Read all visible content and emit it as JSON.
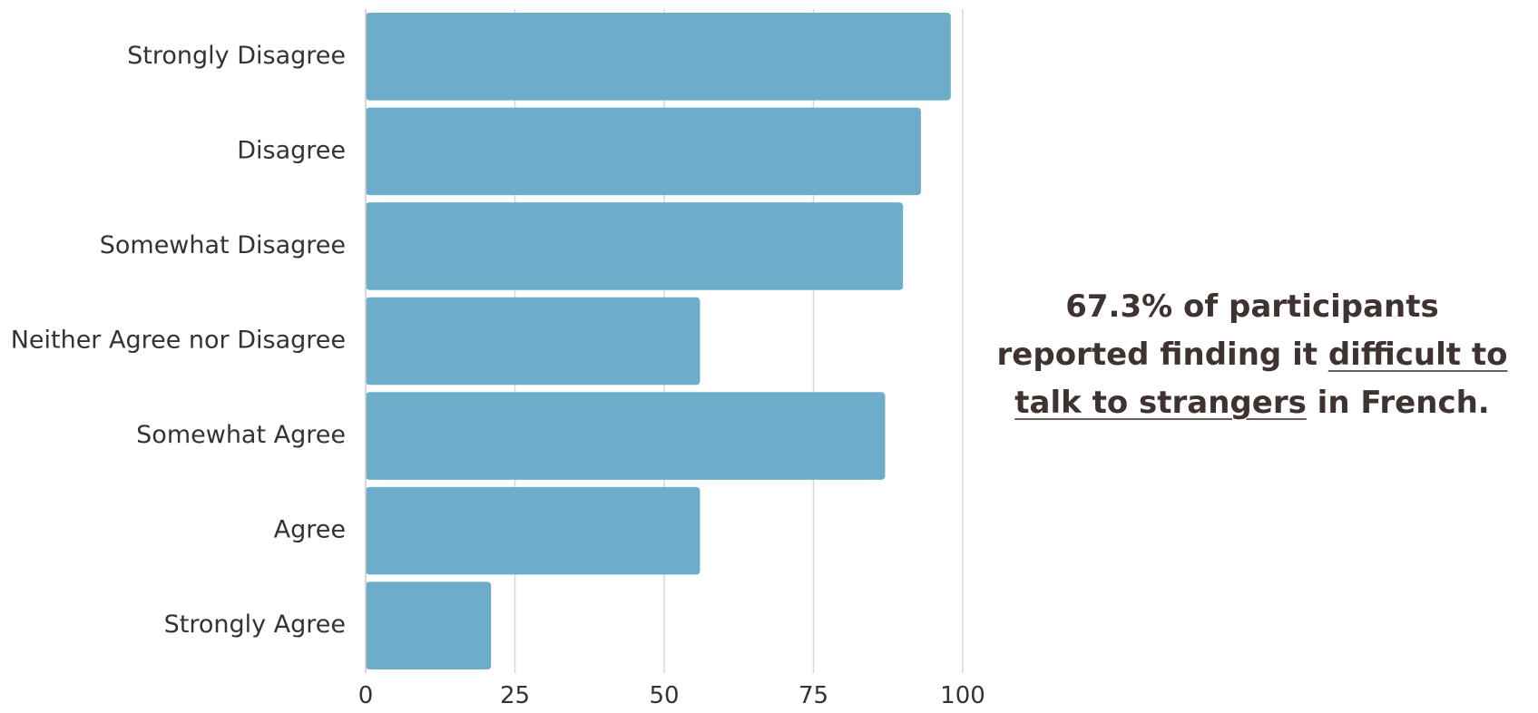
{
  "chart_data": {
    "type": "bar",
    "orientation": "horizontal",
    "categories": [
      "Strongly Disagree",
      "Disagree",
      "Somewhat Disagree",
      "Neither Agree nor Disagree",
      "Somewhat Agree",
      "Agree",
      "Strongly Agree"
    ],
    "values": [
      98,
      93,
      90,
      56,
      87,
      56,
      21
    ],
    "xlim": [
      0,
      100
    ],
    "xticks": [
      "0",
      "25",
      "50",
      "75",
      "100"
    ],
    "grid": true,
    "bar_color": "#6eadc9",
    "title": "",
    "xlabel": "",
    "ylabel": ""
  },
  "callout": {
    "part1": "67.3% of participants reported finding it",
    "highlight": "difficult to talk to strangers",
    "part2": "in French."
  }
}
